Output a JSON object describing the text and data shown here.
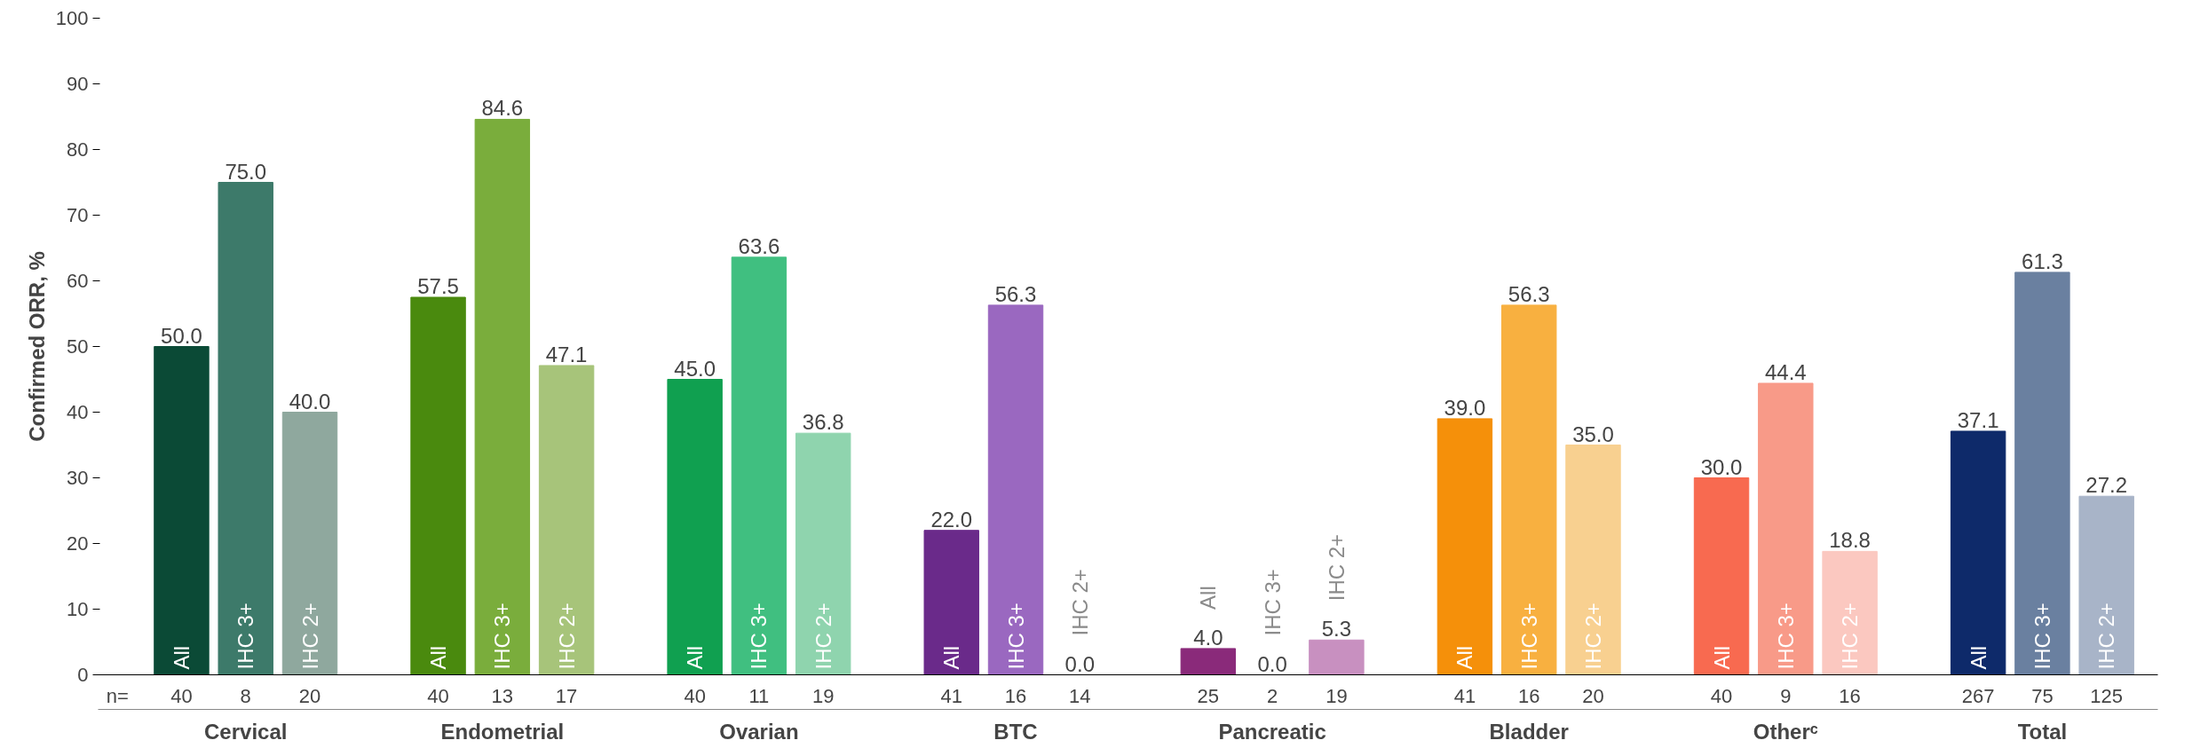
{
  "chart_data": {
    "type": "bar",
    "ylabel": "Confirmed ORR, %",
    "categories": [
      "Cervical",
      "Endometrial",
      "Ovarian",
      "BTC",
      "Pancreatic",
      "Bladder",
      "Otherᶜ",
      "Total"
    ],
    "series": [
      {
        "name": "All",
        "colors": [
          "#0b4a36",
          "#4a8a0e",
          "#10a050",
          "#6a2a8a",
          "#8a2a7a",
          "#f5900a",
          "#f86a50",
          "#0e2a6a"
        ],
        "values": [
          50.0,
          57.5,
          45.0,
          22.0,
          4.0,
          39.0,
          30.0,
          37.1
        ],
        "value_labels": [
          "50.0",
          "57.5",
          "45.0",
          "22.0",
          "4.0",
          "39.0",
          "30.0",
          "37.1"
        ]
      },
      {
        "name": "IHC 3+",
        "colors": [
          "#3d7a6a",
          "#7aad3c",
          "#40bf80",
          "#9a68c0",
          "#b05aa0",
          "#f8b040",
          "#f89a88",
          "#6a80a0"
        ],
        "values": [
          75.0,
          84.6,
          63.6,
          56.3,
          0.0,
          56.3,
          44.4,
          61.3
        ],
        "value_labels": [
          "75.0",
          "84.6",
          "63.6",
          "56.3",
          "0.0",
          "56.3",
          "44.4",
          "61.3"
        ]
      },
      {
        "name": "IHC 2+",
        "colors": [
          "#8fa89e",
          "#a7c47a",
          "#8fd4ae",
          "#c0a8d8",
          "#c890c0",
          "#f8d090",
          "#fbc8c0",
          "#a8b4c8"
        ],
        "values": [
          40.0,
          47.1,
          36.8,
          0.0,
          5.3,
          35.0,
          18.8,
          27.2
        ],
        "value_labels": [
          "40.0",
          "47.1",
          "36.8",
          "0.0",
          "5.3",
          "35.0",
          "18.8",
          "27.2"
        ]
      }
    ],
    "ylim": [
      0,
      100
    ],
    "yticks": [
      0,
      10,
      20,
      30,
      40,
      50,
      60,
      70,
      80,
      90,
      100
    ],
    "grid": false,
    "annotations": [
      "n=",
      "40",
      "8",
      "20",
      "40",
      "13",
      "17",
      "40",
      "11",
      "19",
      "41",
      "16",
      "14",
      "25",
      "2",
      "19",
      "41",
      "16",
      "20",
      "40",
      "9",
      "16",
      "267",
      "75",
      "125"
    ]
  }
}
